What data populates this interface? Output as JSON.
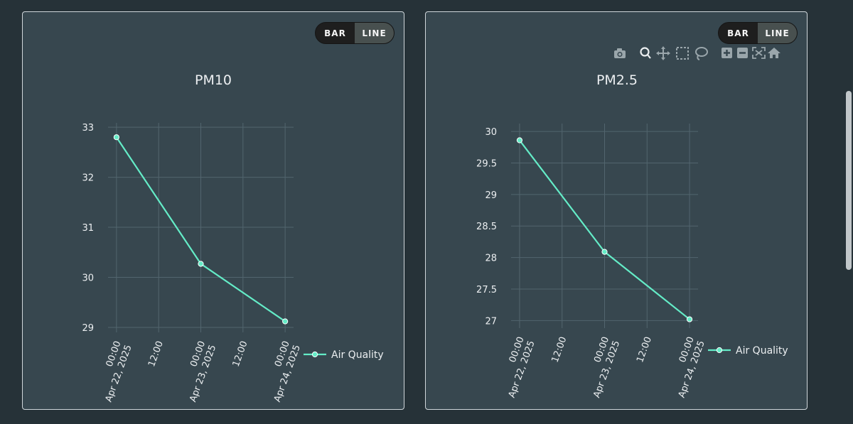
{
  "colors": {
    "line": "#64ecc7",
    "marker_edge": "#ffffff",
    "grid": "#52656e",
    "text": "#eceff1"
  },
  "toggle": {
    "bar_label": "BAR",
    "line_label": "LINE",
    "active": "line"
  },
  "chart_data": [
    {
      "type": "line",
      "title": "PM10",
      "x_dates": [
        "2025-04-22",
        "2025-04-23",
        "2025-04-24"
      ],
      "x": [
        0,
        1,
        2
      ],
      "series": [
        {
          "name": "Air Quality",
          "values": [
            32.8,
            30.27,
            29.12
          ]
        }
      ],
      "x_ticks": [
        {
          "pos": 0,
          "time": "00:00",
          "date": "Apr 22, 2025"
        },
        {
          "pos": 0.5,
          "time": "12:00",
          "date": ""
        },
        {
          "pos": 1,
          "time": "00:00",
          "date": "Apr 23, 2025"
        },
        {
          "pos": 1.5,
          "time": "12:00",
          "date": ""
        },
        {
          "pos": 2,
          "time": "00:00",
          "date": "Apr 24, 2025"
        }
      ],
      "y_ticks": [
        29,
        30,
        31,
        32,
        33
      ],
      "xlim": [
        -0.1,
        2.1
      ],
      "ylim": [
        28.9,
        33.03
      ],
      "xlabel": "",
      "ylabel": "",
      "grid": true,
      "legend": "right-bottom"
    },
    {
      "type": "line",
      "title": "PM2.5",
      "x_dates": [
        "2025-04-22",
        "2025-04-23",
        "2025-04-24"
      ],
      "x": [
        0,
        1,
        2
      ],
      "series": [
        {
          "name": "Air Quality",
          "values": [
            29.86,
            28.09,
            27.02
          ]
        }
      ],
      "x_ticks": [
        {
          "pos": 0,
          "time": "00:00",
          "date": "Apr 22, 2025"
        },
        {
          "pos": 0.5,
          "time": "12:00",
          "date": ""
        },
        {
          "pos": 1,
          "time": "00:00",
          "date": "Apr 23, 2025"
        },
        {
          "pos": 1.5,
          "time": "12:00",
          "date": ""
        },
        {
          "pos": 2,
          "time": "00:00",
          "date": "Apr 24, 2025"
        }
      ],
      "y_ticks": [
        27,
        "27.5",
        28,
        "28.5",
        29,
        "29.5",
        30
      ],
      "xlim": [
        -0.1,
        2.1
      ],
      "ylim": [
        26.88,
        30.08
      ],
      "xlabel": "",
      "ylabel": "",
      "grid": true,
      "legend": "right-bottom"
    }
  ]
}
